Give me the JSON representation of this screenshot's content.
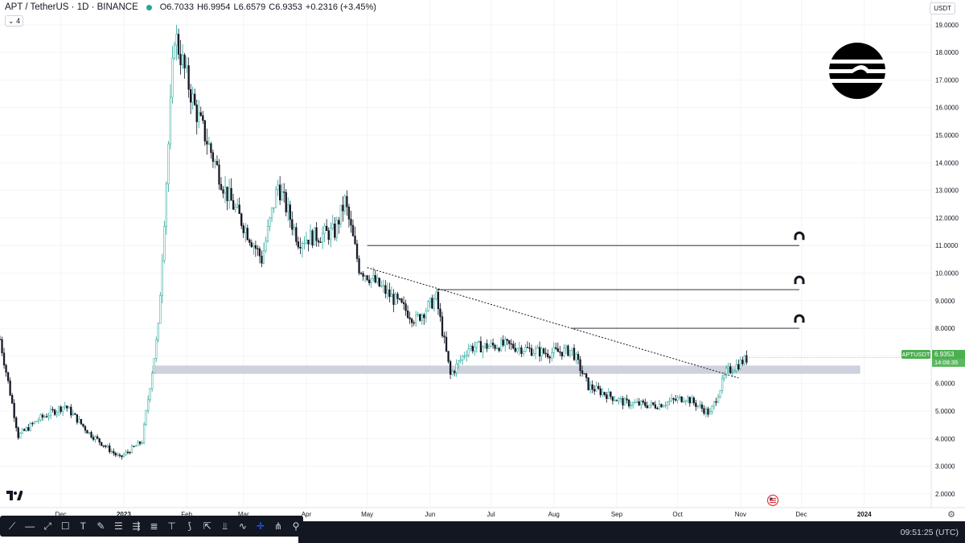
{
  "header": {
    "symbol": "APT / TetherUS · 1D · BINANCE",
    "open": "O6.7033",
    "high": "H6.9954",
    "low": "L6.6579",
    "close": "C6.9353",
    "change": "+0.2316 (+3.45%)",
    "indicator_count": "4",
    "currency": "USDT"
  },
  "colors": {
    "up": "#26a69a",
    "down": "#131722",
    "zone": "#cfd2dc",
    "price_tag": "#4caf50",
    "toolbar_bg": "#131722"
  },
  "price_tag": {
    "label": "APTUSDT",
    "price": "6.9353",
    "countdown": "14:08:35"
  },
  "clock": "09:51:25 (UTC)",
  "toolbar_icons": [
    "cross-icon",
    "trend-line-icon",
    "horizontal-line-icon",
    "ray-icon",
    "rectangle-icon",
    "text-icon",
    "brush-icon",
    "fib-icon",
    "parallel-channel-icon",
    "lines-icon",
    "measure-icon",
    "path-icon",
    "pitchfork-icon",
    "pattern-icon",
    "zigzag-icon",
    "crosshair-icon",
    "magnet-icon"
  ],
  "chart_data": {
    "type": "candlestick",
    "y_axis": {
      "ticks": [
        "19.0000",
        "18.0000",
        "17.0000",
        "16.0000",
        "15.0000",
        "14.0000",
        "13.0000",
        "12.0000",
        "11.0000",
        "10.0000",
        "9.0000",
        "8.0000",
        "7.0000",
        "6.0000",
        "5.0000",
        "4.0000",
        "3.0000",
        "2.0000"
      ],
      "ylim": [
        1.5,
        19.9
      ]
    },
    "x_axis": {
      "labels": [
        {
          "text": "Dec",
          "date": "2022-12-01"
        },
        {
          "text": "2023",
          "date": "2023-01-01",
          "bold": true
        },
        {
          "text": "Feb",
          "date": "2023-02-01"
        },
        {
          "text": "Mar",
          "date": "2023-03-01"
        },
        {
          "text": "Apr",
          "date": "2023-04-01"
        },
        {
          "text": "May",
          "date": "2023-05-01"
        },
        {
          "text": "Jun",
          "date": "2023-06-01"
        },
        {
          "text": "Jul",
          "date": "2023-07-01"
        },
        {
          "text": "Aug",
          "date": "2023-08-01"
        },
        {
          "text": "Sep",
          "date": "2023-09-01"
        },
        {
          "text": "Oct",
          "date": "2023-10-01"
        },
        {
          "text": "Nov",
          "date": "2023-11-01"
        },
        {
          "text": "Dec",
          "date": "2023-12-01"
        },
        {
          "text": "2024",
          "date": "2024-01-01",
          "bold": true
        }
      ],
      "xlim": [
        "2022-11-01",
        "2024-02-03"
      ]
    },
    "keypoints": [
      {
        "date": "2022-11-01",
        "price": 7.6
      },
      {
        "date": "2022-11-10",
        "price": 4.1
      },
      {
        "date": "2022-11-20",
        "price": 4.7
      },
      {
        "date": "2022-12-03",
        "price": 5.2
      },
      {
        "date": "2022-12-15",
        "price": 4.2
      },
      {
        "date": "2022-12-30",
        "price": 3.3
      },
      {
        "date": "2023-01-10",
        "price": 3.9
      },
      {
        "date": "2023-01-18",
        "price": 8.0
      },
      {
        "date": "2023-01-26",
        "price": 18.7
      },
      {
        "date": "2023-02-05",
        "price": 16.0
      },
      {
        "date": "2023-02-20",
        "price": 13.0
      },
      {
        "date": "2023-03-10",
        "price": 10.5
      },
      {
        "date": "2023-03-18",
        "price": 13.2
      },
      {
        "date": "2023-03-28",
        "price": 11.2
      },
      {
        "date": "2023-04-15",
        "price": 11.5
      },
      {
        "date": "2023-04-20",
        "price": 12.6
      },
      {
        "date": "2023-04-27",
        "price": 10.2
      },
      {
        "date": "2023-05-15",
        "price": 9.0
      },
      {
        "date": "2023-05-25",
        "price": 8.3
      },
      {
        "date": "2023-06-04",
        "price": 9.1
      },
      {
        "date": "2023-06-11",
        "price": 6.3
      },
      {
        "date": "2023-06-20",
        "price": 7.3
      },
      {
        "date": "2023-07-08",
        "price": 7.4
      },
      {
        "date": "2023-07-28",
        "price": 7.1
      },
      {
        "date": "2023-08-10",
        "price": 7.2
      },
      {
        "date": "2023-08-18",
        "price": 5.9
      },
      {
        "date": "2023-09-05",
        "price": 5.3
      },
      {
        "date": "2023-09-20",
        "price": 5.2
      },
      {
        "date": "2023-10-05",
        "price": 5.5
      },
      {
        "date": "2023-10-17",
        "price": 4.9
      },
      {
        "date": "2023-10-25",
        "price": 6.4
      },
      {
        "date": "2023-11-04",
        "price": 6.9
      }
    ],
    "horizontal_levels": [
      {
        "price": 11.0,
        "from": "2023-05-01",
        "to": "2023-11-30"
      },
      {
        "price": 9.4,
        "from": "2023-06-04",
        "to": "2023-11-30"
      },
      {
        "price": 8.0,
        "from": "2023-08-10",
        "to": "2023-11-30"
      }
    ],
    "zone": {
      "from_price": 6.35,
      "to_price": 6.65,
      "from": "2023-01-15",
      "to": "2023-12-30"
    },
    "trendline": {
      "from": {
        "date": "2023-05-01",
        "price": 10.2
      },
      "to": {
        "date": "2023-10-31",
        "price": 6.2
      },
      "style": "dotted"
    },
    "last_price": 6.9353
  }
}
